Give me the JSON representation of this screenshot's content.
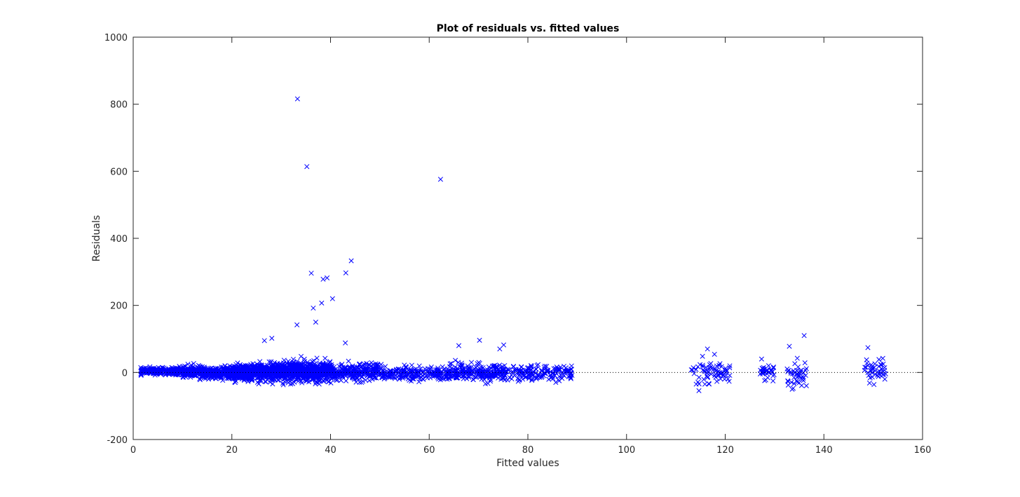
{
  "chart_data": {
    "type": "scatter",
    "title": "Plot of residuals vs. fitted values",
    "xlabel": "Fitted values",
    "ylabel": "Residuals",
    "xlim": [
      0,
      160
    ],
    "ylim": [
      -200,
      1000
    ],
    "xticks": [
      "0",
      "20",
      "40",
      "60",
      "80",
      "100",
      "120",
      "140",
      "160"
    ],
    "yticks": [
      "-200",
      "0",
      "200",
      "400",
      "600",
      "800",
      "1000"
    ],
    "marker": "x",
    "marker_color": "#0000ff",
    "reference_line": {
      "y": 0,
      "style": "dotted",
      "color": "#000000"
    },
    "grid": false,
    "legend": "none",
    "outliers": [
      [
        33.3,
        816
      ],
      [
        35.2,
        614
      ],
      [
        62.3,
        576
      ],
      [
        36.1,
        296
      ],
      [
        44.2,
        333
      ],
      [
        43.1,
        297
      ],
      [
        38.5,
        278
      ],
      [
        39.3,
        282
      ],
      [
        40.4,
        220
      ],
      [
        38.2,
        207
      ],
      [
        36.5,
        192
      ],
      [
        37.0,
        150
      ],
      [
        33.2,
        142
      ],
      [
        28.1,
        102
      ],
      [
        26.6,
        95
      ],
      [
        70.2,
        96
      ],
      [
        75.1,
        82
      ],
      [
        66.0,
        80
      ],
      [
        74.3,
        70
      ],
      [
        43.0,
        88
      ],
      [
        136.0,
        110
      ],
      [
        133.0,
        78
      ],
      [
        116.4,
        70
      ]
    ],
    "clusters": [
      {
        "x_range": [
          1.5,
          10
        ],
        "n": 260,
        "center": 4,
        "spread": 9,
        "skew": 0
      },
      {
        "x_range": [
          10,
          20
        ],
        "n": 420,
        "center": 0,
        "spread": 15,
        "skew": 0
      },
      {
        "x_range": [
          20,
          30
        ],
        "n": 650,
        "center": 0,
        "spread": 22,
        "skew": 0
      },
      {
        "x_range": [
          30,
          40
        ],
        "n": 650,
        "center": 2,
        "spread": 25,
        "skew": 0
      },
      {
        "x_range": [
          40,
          50
        ],
        "n": 260,
        "center": 0,
        "spread": 22,
        "skew": 0
      },
      {
        "x_range": [
          50,
          65
        ],
        "n": 230,
        "center": -2,
        "spread": 20,
        "skew": 0
      },
      {
        "x_range": [
          65,
          75
        ],
        "n": 210,
        "center": 0,
        "spread": 22,
        "skew": 0
      },
      {
        "x_range": [
          75,
          89
        ],
        "n": 170,
        "center": -2,
        "spread": 20,
        "skew": 0
      },
      {
        "x_range": [
          113,
          121
        ],
        "n": 70,
        "center": 0,
        "spread": 35,
        "skew": 0
      },
      {
        "x_range": [
          127,
          130
        ],
        "n": 35,
        "center": 0,
        "spread": 22,
        "skew": 0
      },
      {
        "x_range": [
          132.5,
          136.5
        ],
        "n": 45,
        "center": -10,
        "spread": 45,
        "skew": 0
      },
      {
        "x_range": [
          148,
          153
        ],
        "n": 45,
        "center": 5,
        "spread": 35,
        "skew": 0
      }
    ]
  }
}
